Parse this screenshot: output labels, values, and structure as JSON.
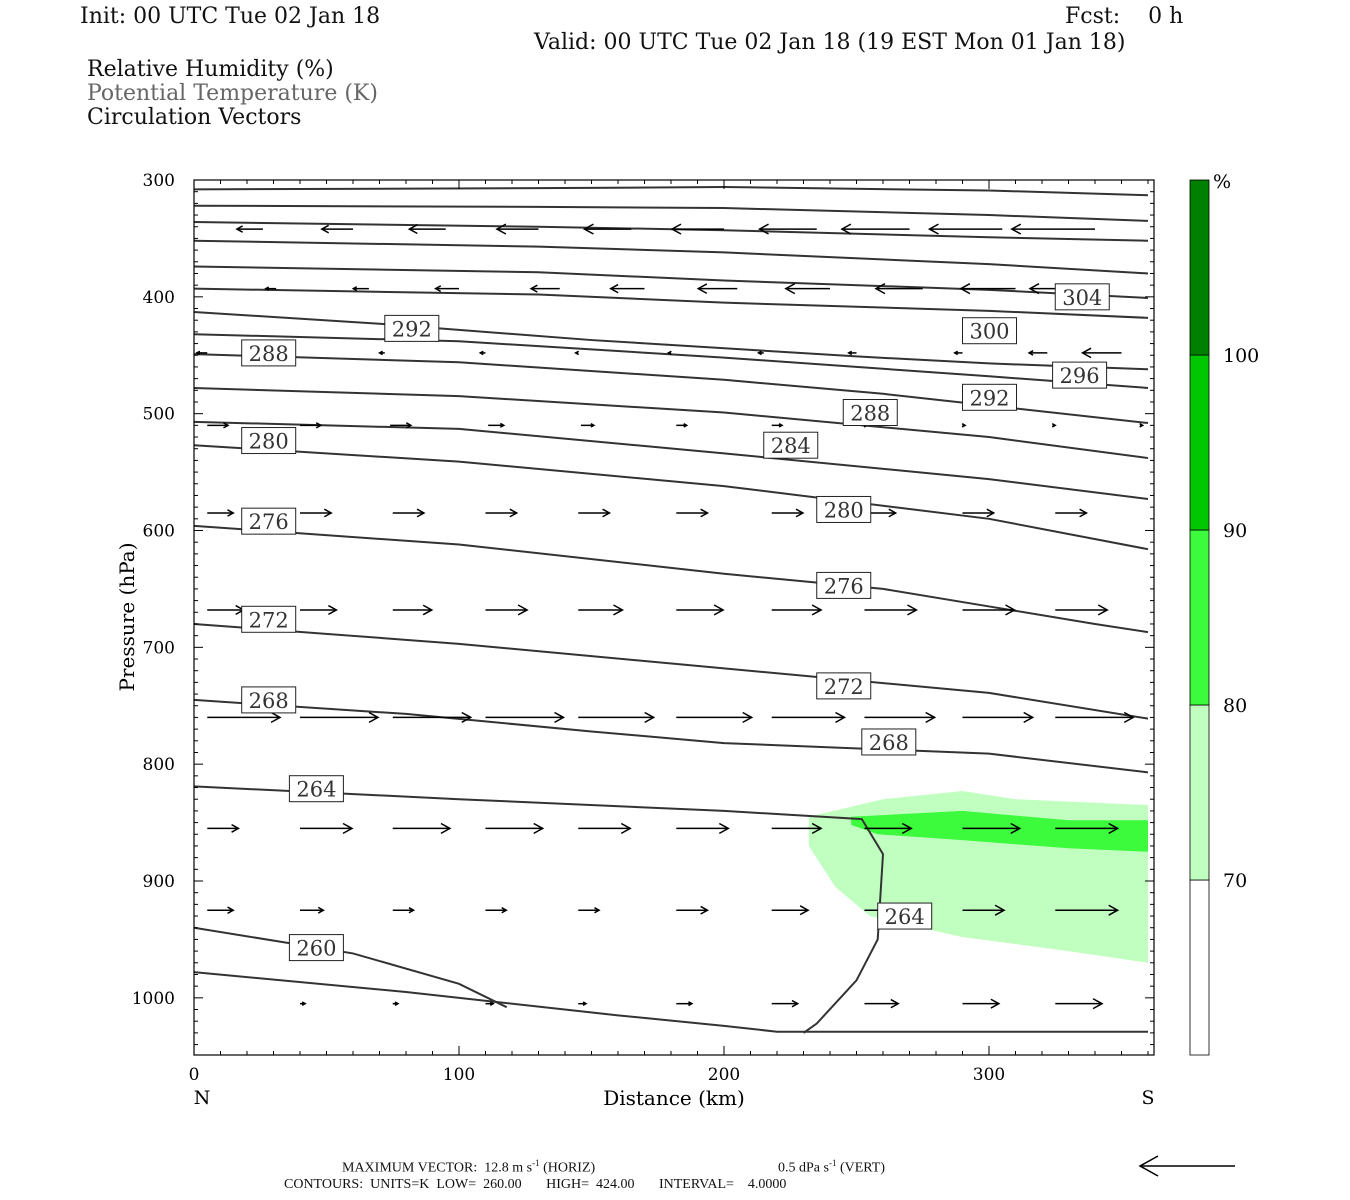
{
  "header": {
    "init": "Init: 00 UTC Tue 02 Jan 18",
    "fcst": "Fcst:    0 h",
    "valid": "Valid: 00 UTC Tue 02 Jan 18 (19 EST Mon 01 Jan 18)",
    "legend": [
      "Relative Humidity (%)",
      "Potential Temperature (K)",
      "Circulation Vectors"
    ]
  },
  "chart_data": {
    "type": "cross-section",
    "xlabel": "Distance (km)",
    "ylabel": "Pressure (hPa)",
    "xlim": [
      0,
      360
    ],
    "ylim": [
      1040,
      300
    ],
    "x_ticks": [
      "0",
      "100",
      "200",
      "300"
    ],
    "y_ticks": [
      "300",
      "400",
      "500",
      "600",
      "700",
      "800",
      "900",
      "1000"
    ],
    "end_labels": {
      "left": "N",
      "right": "S"
    },
    "theta_contours": [
      {
        "points": [
          [
            0,
            308
          ],
          [
            130,
            307
          ],
          [
            200,
            306
          ],
          [
            300,
            309
          ],
          [
            360,
            313
          ]
        ]
      },
      {
        "points": [
          [
            0,
            322
          ],
          [
            130,
            323
          ],
          [
            200,
            324
          ],
          [
            300,
            330
          ],
          [
            360,
            335
          ]
        ]
      },
      {
        "points": [
          [
            0,
            336
          ],
          [
            130,
            340
          ],
          [
            200,
            343
          ],
          [
            300,
            349
          ],
          [
            360,
            352
          ]
        ]
      },
      {
        "points": [
          [
            0,
            352
          ],
          [
            130,
            357
          ],
          [
            200,
            362
          ],
          [
            300,
            372
          ],
          [
            360,
            380
          ]
        ]
      },
      {
        "points": [
          [
            0,
            374
          ],
          [
            130,
            379
          ],
          [
            200,
            386
          ],
          [
            300,
            394
          ],
          [
            360,
            401
          ]
        ]
      },
      {
        "label": "304",
        "points": [
          [
            0,
            393
          ],
          [
            130,
            398
          ],
          [
            200,
            405
          ],
          [
            300,
            412
          ],
          [
            360,
            418
          ]
        ]
      },
      {
        "label": "300",
        "points": [
          [
            0,
            413
          ],
          [
            70,
            423
          ],
          [
            150,
            437
          ],
          [
            250,
            451
          ],
          [
            300,
            457
          ],
          [
            360,
            462
          ]
        ]
      },
      {
        "label": "296",
        "points": [
          [
            0,
            432
          ],
          [
            100,
            438
          ],
          [
            200,
            452
          ],
          [
            300,
            468
          ],
          [
            360,
            478
          ]
        ]
      },
      {
        "label": "292",
        "points": [
          [
            0,
            449
          ],
          [
            100,
            456
          ],
          [
            200,
            471
          ],
          [
            260,
            483
          ],
          [
            300,
            493
          ],
          [
            360,
            508
          ]
        ]
      },
      {
        "label": "288",
        "points": [
          [
            0,
            478
          ],
          [
            100,
            485
          ],
          [
            200,
            499
          ],
          [
            300,
            520
          ],
          [
            360,
            538
          ]
        ]
      },
      {
        "label": "284",
        "points": [
          [
            0,
            507
          ],
          [
            100,
            513
          ],
          [
            200,
            534
          ],
          [
            300,
            556
          ],
          [
            360,
            573
          ]
        ]
      },
      {
        "label": "280",
        "points": [
          [
            0,
            527
          ],
          [
            100,
            541
          ],
          [
            200,
            562
          ],
          [
            300,
            590
          ],
          [
            360,
            616
          ]
        ]
      },
      {
        "label": "276",
        "points": [
          [
            0,
            596
          ],
          [
            100,
            612
          ],
          [
            200,
            637
          ],
          [
            260,
            650
          ],
          [
            300,
            665
          ],
          [
            340,
            680
          ],
          [
            360,
            687
          ]
        ]
      },
      {
        "label": "272",
        "points": [
          [
            0,
            680
          ],
          [
            100,
            697
          ],
          [
            200,
            718
          ],
          [
            300,
            739
          ],
          [
            360,
            761
          ]
        ]
      },
      {
        "label": "268",
        "points": [
          [
            0,
            745
          ],
          [
            80,
            757
          ],
          [
            150,
            772
          ],
          [
            200,
            782
          ],
          [
            300,
            791
          ],
          [
            360,
            807
          ]
        ]
      },
      {
        "label": "264",
        "points": [
          [
            0,
            819
          ],
          [
            100,
            830
          ],
          [
            200,
            840
          ],
          [
            252,
            847
          ],
          [
            260,
            877
          ],
          [
            258,
            950
          ],
          [
            250,
            985
          ],
          [
            235,
            1022
          ],
          [
            230,
            1030
          ]
        ]
      },
      {
        "label": "260",
        "points": [
          [
            0,
            940
          ],
          [
            60,
            962
          ],
          [
            100,
            988
          ],
          [
            118,
            1008
          ]
        ]
      },
      {
        "points": [
          [
            0,
            978
          ],
          [
            80,
            995
          ],
          [
            160,
            1015
          ],
          [
            200,
            1024
          ],
          [
            220,
            1029
          ],
          [
            360,
            1029
          ]
        ]
      }
    ],
    "contour_labels": [
      {
        "text": "292",
        "x": 72,
        "y": 427
      },
      {
        "text": "288",
        "x": 18,
        "y": 448
      },
      {
        "text": "304",
        "x": 325,
        "y": 400
      },
      {
        "text": "300",
        "x": 290,
        "y": 429
      },
      {
        "text": "296",
        "x": 324,
        "y": 467
      },
      {
        "text": "292",
        "x": 290,
        "y": 486
      },
      {
        "text": "288",
        "x": 245,
        "y": 499
      },
      {
        "text": "284",
        "x": 215,
        "y": 527
      },
      {
        "text": "280",
        "x": 18,
        "y": 523
      },
      {
        "text": "280",
        "x": 235,
        "y": 582
      },
      {
        "text": "276",
        "x": 18,
        "y": 592
      },
      {
        "text": "276",
        "x": 235,
        "y": 647
      },
      {
        "text": "272",
        "x": 18,
        "y": 676
      },
      {
        "text": "272",
        "x": 235,
        "y": 733
      },
      {
        "text": "268",
        "x": 18,
        "y": 745
      },
      {
        "text": "268",
        "x": 252,
        "y": 781
      },
      {
        "text": "264",
        "x": 36,
        "y": 821
      },
      {
        "text": "264",
        "x": 258,
        "y": 930
      },
      {
        "text": "260",
        "x": 36,
        "y": 957
      }
    ],
    "rh_shading": [
      {
        "level": 70,
        "color": "#c0ffc0",
        "points": [
          [
            232,
            845
          ],
          [
            260,
            830
          ],
          [
            290,
            823
          ],
          [
            310,
            830
          ],
          [
            360,
            835
          ],
          [
            360,
            970
          ],
          [
            330,
            960
          ],
          [
            290,
            948
          ],
          [
            255,
            930
          ],
          [
            242,
            905
          ],
          [
            232,
            870
          ]
        ]
      },
      {
        "level": 80,
        "color": "#3cfa3c",
        "points": [
          [
            248,
            845
          ],
          [
            290,
            840
          ],
          [
            330,
            848
          ],
          [
            360,
            848
          ],
          [
            360,
            875
          ],
          [
            330,
            872
          ],
          [
            290,
            865
          ],
          [
            258,
            860
          ],
          [
            248,
            852
          ]
        ]
      }
    ],
    "vectors": {
      "rows": [
        {
          "p": 342,
          "items": [
            [
              26,
              -10
            ],
            [
              60,
              -12
            ],
            [
              95,
              -14
            ],
            [
              130,
              -16
            ],
            [
              165,
              -18
            ],
            [
              200,
              -20
            ],
            [
              235,
              -22
            ],
            [
              270,
              -26
            ],
            [
              305,
              -28
            ],
            [
              340,
              -32
            ]
          ]
        },
        {
          "p": 393,
          "items": [
            [
              31,
              -4
            ],
            [
              66,
              -6
            ],
            [
              100,
              -9
            ],
            [
              138,
              -11
            ],
            [
              170,
              -13
            ],
            [
              205,
              -15
            ],
            [
              240,
              -17
            ],
            [
              275,
              -18
            ],
            [
              310,
              -21
            ],
            [
              340,
              -25
            ]
          ]
        },
        {
          "p": 448,
          "items": [
            [
              5,
              -4
            ],
            [
              72,
              -2
            ],
            [
              110,
              -2
            ],
            [
              145,
              -1
            ],
            [
              180,
              -1
            ],
            [
              215,
              -2
            ],
            [
              250,
              -3
            ],
            [
              290,
              -3
            ],
            [
              322,
              -7
            ],
            [
              350,
              -15
            ]
          ]
        },
        {
          "p": 510,
          "items": [
            [
              5,
              8
            ],
            [
              40,
              8
            ],
            [
              74,
              8
            ],
            [
              111,
              6
            ],
            [
              146,
              5
            ],
            [
              182,
              4
            ],
            [
              218,
              4
            ],
            [
              252,
              2
            ],
            [
              290,
              1
            ],
            [
              324,
              1
            ],
            [
              357,
              1
            ]
          ]
        },
        {
          "p": 585,
          "items": [
            [
              5,
              10
            ],
            [
              40,
              12
            ],
            [
              75,
              12
            ],
            [
              110,
              12
            ],
            [
              145,
              12
            ],
            [
              182,
              12
            ],
            [
              218,
              12
            ],
            [
              253,
              12
            ],
            [
              290,
              12
            ],
            [
              325,
              12
            ]
          ]
        },
        {
          "p": 668,
          "items": [
            [
              5,
              14
            ],
            [
              40,
              14
            ],
            [
              75,
              15
            ],
            [
              110,
              16
            ],
            [
              145,
              17
            ],
            [
              182,
              18
            ],
            [
              218,
              19
            ],
            [
              253,
              20
            ],
            [
              290,
              20
            ],
            [
              325,
              20
            ]
          ]
        },
        {
          "p": 760,
          "items": [
            [
              5,
              28
            ],
            [
              40,
              30
            ],
            [
              75,
              30
            ],
            [
              110,
              30
            ],
            [
              145,
              29
            ],
            [
              182,
              29
            ],
            [
              218,
              28
            ],
            [
              253,
              27
            ],
            [
              290,
              27
            ],
            [
              325,
              30
            ]
          ]
        },
        {
          "p": 855,
          "items": [
            [
              5,
              12
            ],
            [
              40,
              20
            ],
            [
              75,
              22
            ],
            [
              110,
              22
            ],
            [
              145,
              20
            ],
            [
              182,
              20
            ],
            [
              218,
              19
            ],
            [
              253,
              18
            ],
            [
              290,
              22
            ],
            [
              325,
              24
            ]
          ]
        },
        {
          "p": 925,
          "items": [
            [
              5,
              10
            ],
            [
              40,
              9
            ],
            [
              75,
              8
            ],
            [
              110,
              8
            ],
            [
              145,
              8
            ],
            [
              182,
              12
            ],
            [
              218,
              14
            ],
            [
              253,
              14
            ],
            [
              290,
              16
            ],
            [
              325,
              24
            ]
          ]
        },
        {
          "p": 1005,
          "items": [
            [
              40,
              2
            ],
            [
              75,
              2
            ],
            [
              110,
              3
            ],
            [
              145,
              3
            ],
            [
              182,
              6
            ],
            [
              218,
              10
            ],
            [
              253,
              13
            ],
            [
              290,
              14
            ],
            [
              325,
              18
            ]
          ]
        }
      ]
    },
    "colorbar": {
      "unit": "%",
      "levels": [
        "70",
        "80",
        "90",
        "100"
      ],
      "colors": [
        "#ffffff",
        "#c0ffc0",
        "#3cfa3c",
        "#00c800",
        "#008000"
      ]
    }
  },
  "footer": {
    "max_vector_label": "MAXIMUM VECTOR:",
    "max_vector_horiz_value": "12.8 m s",
    "max_vector_horiz_exp": "-1",
    "max_vector_horiz_unit": " (HORIZ)",
    "max_vector_vert_value": "0.5 dPa s",
    "max_vector_vert_exp": "-1",
    "max_vector_vert_unit": " (VERT)",
    "contours_line": "CONTOURS:  UNITS=K  LOW=  260.00       HIGH=  424.00       INTERVAL=    4.0000"
  }
}
